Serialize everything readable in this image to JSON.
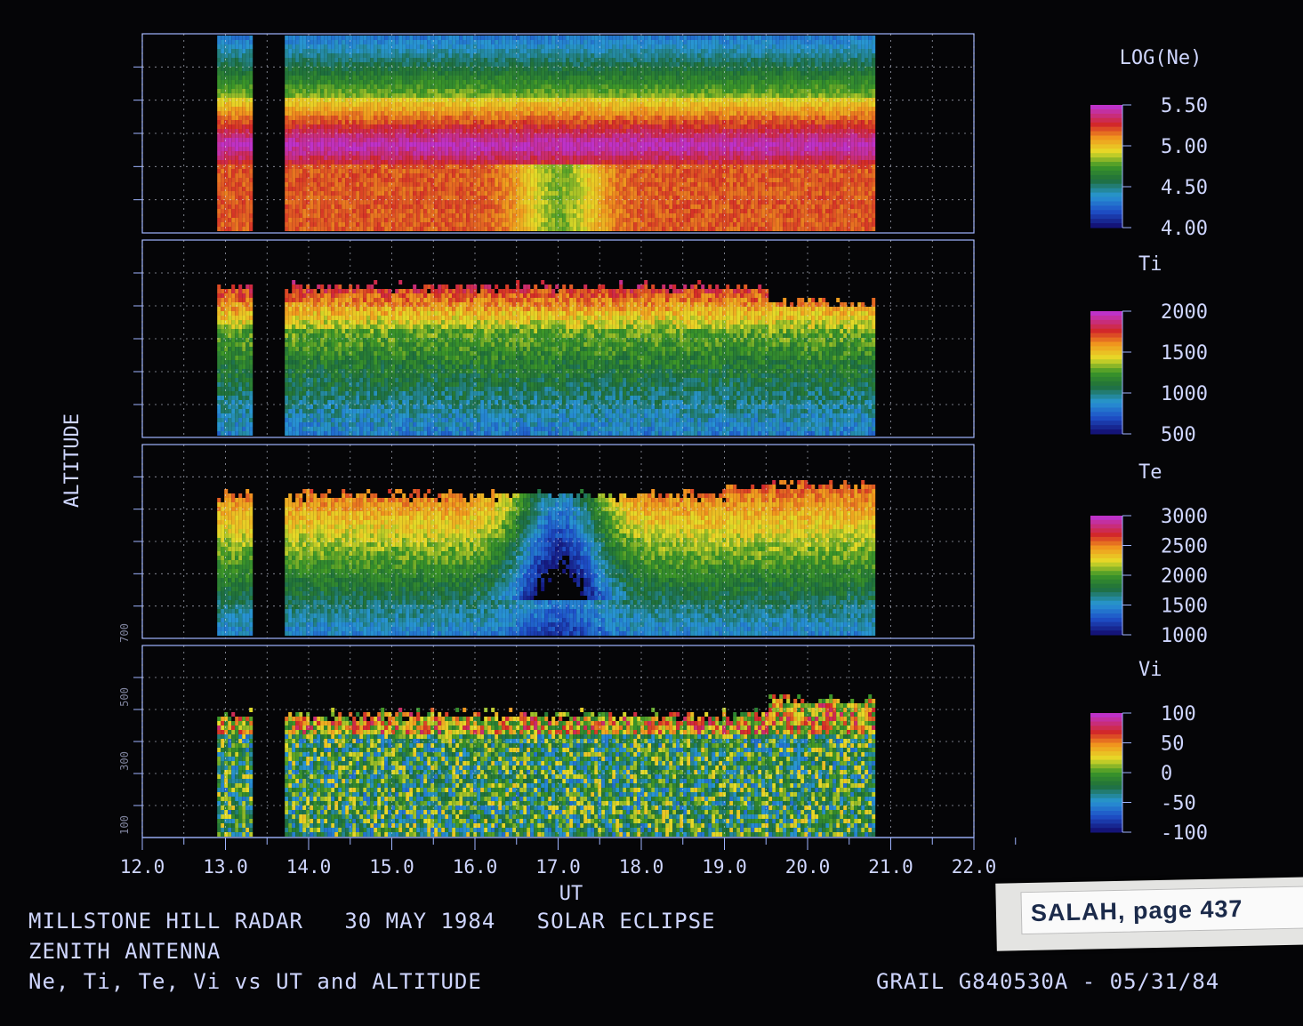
{
  "chart_data": [
    {
      "type": "heatmap",
      "title": "",
      "ylabel": "ALTITUDE",
      "xlabel": "UT",
      "xlim": [
        12.0,
        22.0
      ],
      "colorbar": {
        "label": "LOG(Ne)",
        "ticks": [
          "5.50",
          "5.00",
          "4.50",
          "4.00"
        ],
        "range": [
          4.0,
          5.5
        ]
      },
      "data_gaps_ut": [
        [
          13.3,
          13.7
        ],
        [
          20.8,
          22.0
        ]
      ],
      "data_start_ut": 12.9
    },
    {
      "type": "heatmap",
      "title": "",
      "xlim": [
        12.0,
        22.0
      ],
      "colorbar": {
        "label": "Ti",
        "ticks": [
          "2000",
          "1500",
          "1000",
          "500"
        ],
        "range": [
          500,
          2000
        ]
      }
    },
    {
      "type": "heatmap",
      "title": "",
      "xlim": [
        12.0,
        22.0
      ],
      "colorbar": {
        "label": "Te",
        "ticks": [
          "3000",
          "2500",
          "2000",
          "1500",
          "1000"
        ],
        "range": [
          1000,
          3000
        ]
      },
      "eclipse_dip_ut": 17.0
    },
    {
      "type": "heatmap",
      "title": "",
      "xlim": [
        12.0,
        22.0
      ],
      "ytick_labels": [
        "100",
        "300",
        "500",
        "700"
      ],
      "colorbar": {
        "label": "Vi",
        "ticks": [
          "100",
          "50",
          "0",
          "-50",
          "-100"
        ],
        "range": [
          -100,
          100
        ]
      }
    }
  ],
  "x_ticks": [
    "12.0",
    "13.0",
    "14.0",
    "15.0",
    "16.0",
    "17.0",
    "18.0",
    "19.0",
    "20.0",
    "21.0",
    "22.0"
  ],
  "captions": {
    "line1": "MILLSTONE HILL RADAR   30 MAY 1984   SOLAR ECLIPSE",
    "line2": "ZENITH ANTENNA",
    "line3": "Ne, Ti, Te, Vi vs UT and ALTITUDE",
    "grail": "GRAIL G840530A - 05/31/84"
  },
  "sticker": {
    "text": "SALAH, page 437"
  },
  "colors": {
    "background": "#050507",
    "axis": "#9fb4ff",
    "text": "#cfd6ff"
  }
}
